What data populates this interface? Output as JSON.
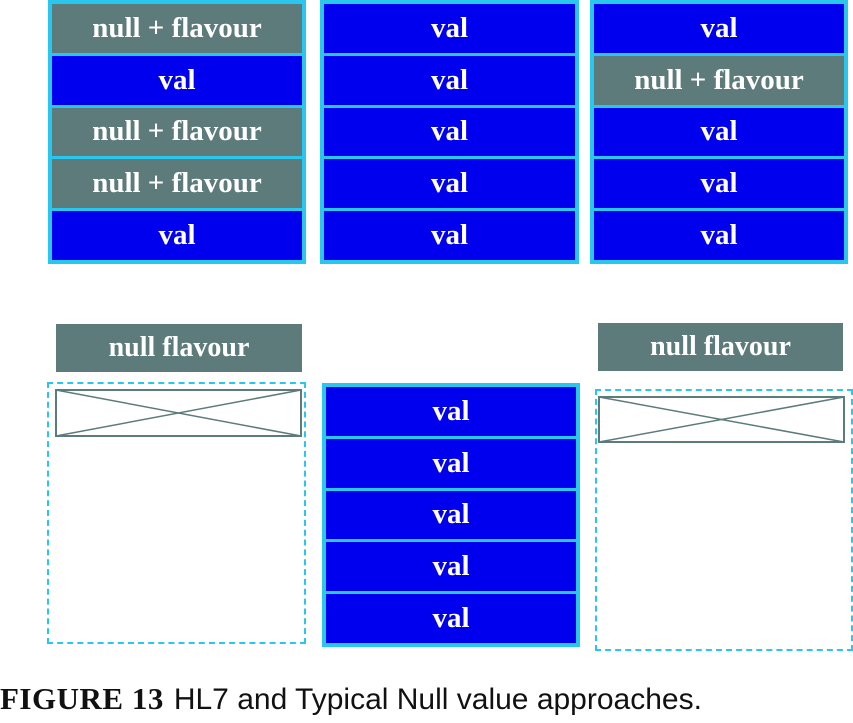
{
  "top": {
    "left_column": [
      "null + flavour",
      "val",
      "null + flavour",
      "null + flavour",
      "val"
    ],
    "middle_column": [
      "val",
      "val",
      "val",
      "val",
      "val"
    ],
    "right_column": [
      "val",
      "null + flavour",
      "val",
      "val",
      "val"
    ]
  },
  "bottom": {
    "left_label": "null flavour",
    "middle_column": [
      "val",
      "val",
      "val",
      "val",
      "val"
    ],
    "right_label": "null flavour"
  },
  "caption": {
    "figure": "FIGURE  13",
    "text": "HL7 and Typical Null value approaches."
  },
  "colors": {
    "value": "#0000ee",
    "null_flavour": "#5c7b7a",
    "border": "#29c6ee"
  }
}
